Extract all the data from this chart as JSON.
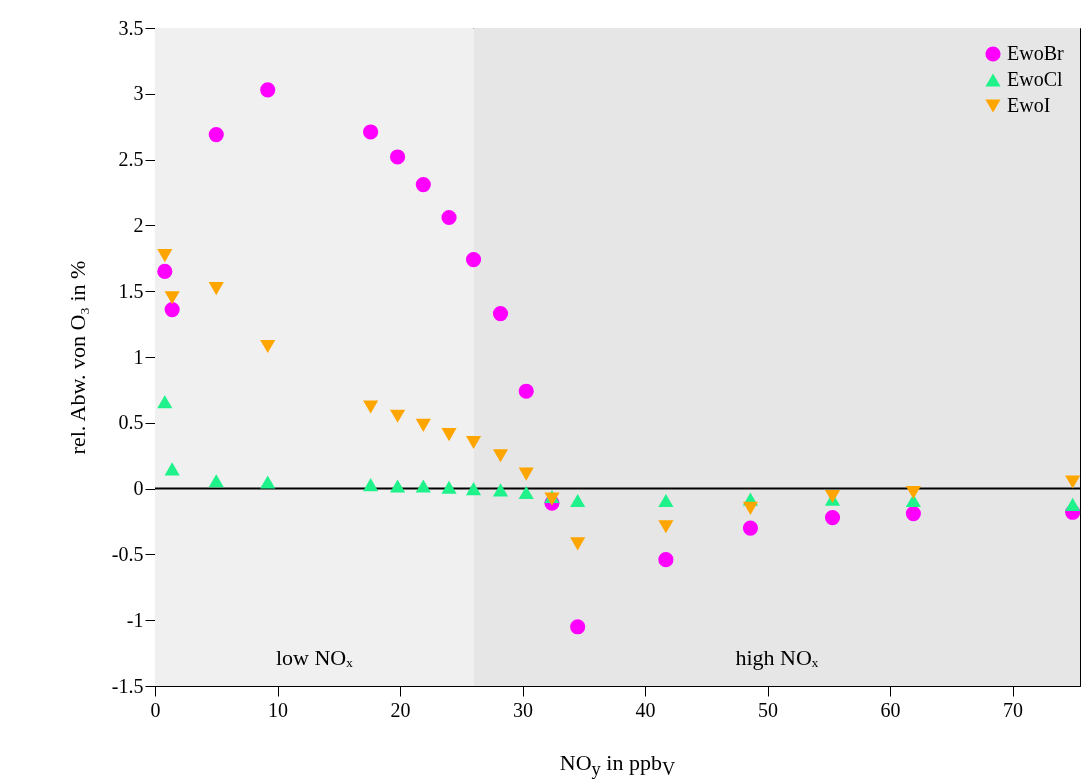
{
  "chart_data": {
    "type": "scatter",
    "xlabel": "NO$_{y}$ in ppb$_{V}$",
    "ylabel": "rel. Abw. von O₃ in %",
    "xlim": [
      0,
      75.5
    ],
    "xticks": [
      0,
      10,
      20,
      30,
      40,
      50,
      60,
      70
    ],
    "ylim": [
      -1.5,
      3.5
    ],
    "yticks": [
      -1.5,
      -1,
      -0.5,
      0,
      0.5,
      1,
      1.5,
      2,
      2.5,
      3,
      3.5
    ],
    "grid": false,
    "legend": "top right",
    "x": [
      0.8,
      1.4,
      5,
      9.2,
      17.6,
      19.8,
      21.9,
      24,
      26,
      28.2,
      30.3,
      32.4,
      34.5,
      41.7,
      48.6,
      55.3,
      61.9,
      74.9
    ],
    "series": [
      {
        "name": "EwoBr",
        "color": "#ff00ff",
        "marker": "circle",
        "values": [
          1.65,
          1.36,
          2.69,
          3.03,
          2.71,
          2.52,
          2.31,
          2.06,
          1.74,
          1.33,
          0.74,
          -0.11,
          -1.05,
          -0.54,
          -0.3,
          -0.22,
          -0.19,
          -0.18
        ]
      },
      {
        "name": "EwoCl",
        "color": "#1ff28a",
        "marker": "triangle",
        "values": [
          0.66,
          0.15,
          0.06,
          0.05,
          0.03,
          0.02,
          0.02,
          0.01,
          0,
          -0.01,
          -0.03,
          -0.06,
          -0.09,
          -0.09,
          -0.08,
          -0.08,
          -0.09,
          -0.12
        ]
      },
      {
        "name": "EwoI",
        "color": "#ffa500",
        "marker": "triangle-down",
        "values": [
          1.77,
          1.45,
          1.52,
          1.08,
          0.62,
          0.55,
          0.48,
          0.41,
          0.35,
          0.25,
          0.11,
          -0.08,
          -0.42,
          -0.29,
          -0.15,
          -0.06,
          -0.03,
          0.05
        ]
      }
    ],
    "bands": [
      {
        "axis": "x",
        "from": 0,
        "to": 26,
        "label": "low NOₓ",
        "color": "#f0f0f0"
      },
      {
        "axis": "x",
        "from": 26,
        "to": 75.5,
        "label": "high NOₓ",
        "color": "#e6e6e6"
      }
    ],
    "ref_lines": [
      {
        "axis": "y",
        "value": 0,
        "color": "#000000"
      }
    ]
  }
}
